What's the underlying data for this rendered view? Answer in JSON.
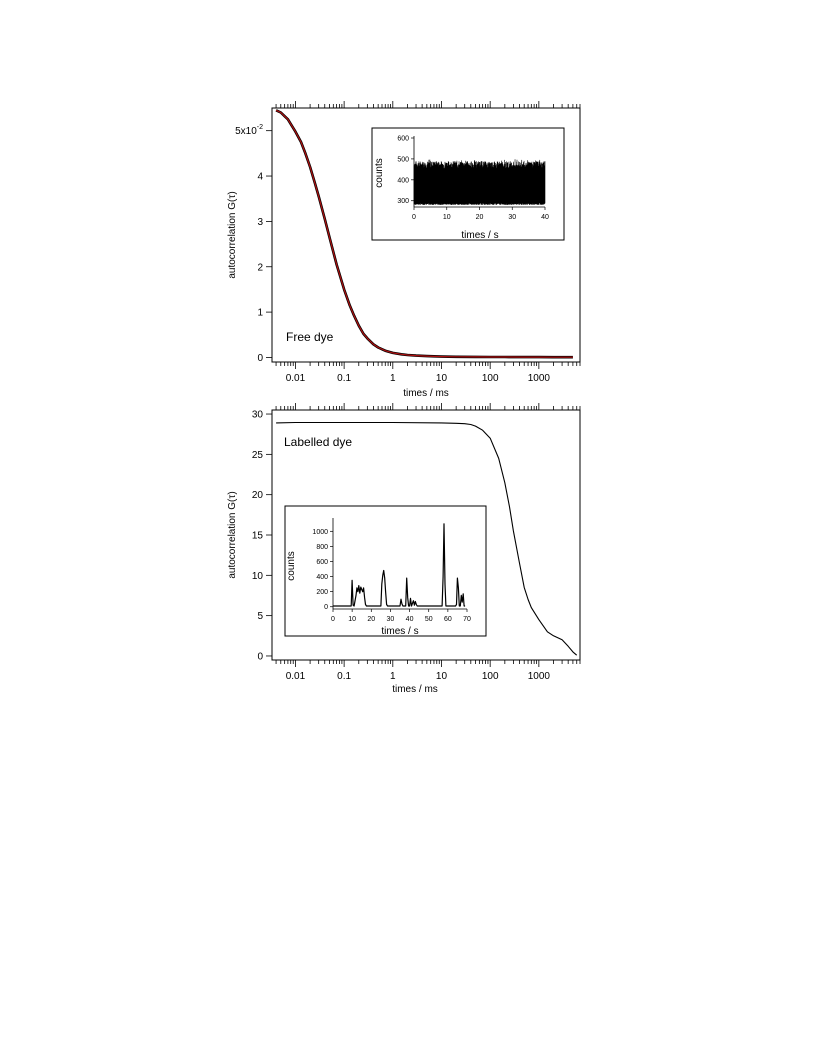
{
  "chart_data": [
    {
      "type": "line",
      "annotation": "Free dye",
      "xlabel": "times / ms",
      "ylabel": "autocorrelation G(τ)",
      "x_scale": "log",
      "xlim": [
        0.0033,
        7000
      ],
      "ylim": [
        -0.1,
        5.5
      ],
      "x_ticks": [
        {
          "value": 0.01,
          "label": "0.01"
        },
        {
          "value": 0.1,
          "label": "0.1"
        },
        {
          "value": 1,
          "label": "1"
        },
        {
          "value": 10,
          "label": "10"
        },
        {
          "value": 100,
          "label": "100"
        },
        {
          "value": 1000,
          "label": "1000"
        }
      ],
      "y_ticks": [
        {
          "value": 0,
          "label": "0"
        },
        {
          "value": 1,
          "label": "1"
        },
        {
          "value": 2,
          "label": "2"
        },
        {
          "value": 3,
          "label": "3"
        },
        {
          "value": 4,
          "label": "4"
        },
        {
          "value": 5,
          "label": "5x10",
          "sup": "-2"
        }
      ],
      "series": [
        {
          "style": "data",
          "color": "#000000",
          "x": [
            0.004,
            0.005,
            0.006,
            0.007,
            0.008,
            0.01,
            0.013,
            0.016,
            0.02,
            0.025,
            0.03,
            0.04,
            0.05,
            0.07,
            0.1,
            0.13,
            0.16,
            0.2,
            0.25,
            0.3,
            0.4,
            0.5,
            0.7,
            1,
            1.5,
            2,
            3,
            5,
            10,
            20,
            50,
            100,
            200,
            500,
            1000,
            2000,
            5000
          ],
          "y": [
            5.45,
            5.4,
            5.32,
            5.25,
            5.15,
            4.98,
            4.75,
            4.5,
            4.2,
            3.85,
            3.55,
            3.05,
            2.65,
            2.05,
            1.5,
            1.15,
            0.92,
            0.7,
            0.52,
            0.42,
            0.29,
            0.22,
            0.15,
            0.1,
            0.07,
            0.055,
            0.04,
            0.03,
            0.02,
            0.015,
            0.012,
            0.01,
            0.01,
            0.008,
            0.008,
            0.006,
            0.006
          ]
        },
        {
          "style": "fit",
          "color": "#b01010",
          "x": [
            0.004,
            0.005,
            0.006,
            0.007,
            0.008,
            0.01,
            0.013,
            0.016,
            0.02,
            0.025,
            0.03,
            0.04,
            0.05,
            0.07,
            0.1,
            0.13,
            0.16,
            0.2,
            0.25,
            0.3,
            0.4,
            0.5,
            0.7,
            1,
            1.5,
            2,
            3,
            5,
            10,
            20,
            50,
            100,
            200,
            500,
            1000,
            2000,
            5000
          ],
          "y": [
            5.45,
            5.4,
            5.32,
            5.25,
            5.15,
            4.98,
            4.75,
            4.5,
            4.2,
            3.85,
            3.55,
            3.05,
            2.65,
            2.05,
            1.5,
            1.15,
            0.92,
            0.7,
            0.52,
            0.42,
            0.29,
            0.22,
            0.15,
            0.1,
            0.07,
            0.055,
            0.04,
            0.03,
            0.02,
            0.015,
            0.012,
            0.01,
            0.01,
            0.008,
            0.008,
            0.006,
            0.006
          ]
        }
      ],
      "inset": {
        "type": "line",
        "xlabel": "times / s",
        "ylabel": "counts",
        "xlim": [
          0,
          40
        ],
        "ylim": [
          270,
          600
        ],
        "x_ticks": [
          {
            "value": 0,
            "label": "0"
          },
          {
            "value": 10,
            "label": "10"
          },
          {
            "value": 20,
            "label": "20"
          },
          {
            "value": 30,
            "label": "30"
          },
          {
            "value": 40,
            "label": "40"
          }
        ],
        "y_ticks": [
          {
            "value": 300,
            "label": "300"
          },
          {
            "value": 400,
            "label": "400"
          },
          {
            "value": 500,
            "label": "500"
          },
          {
            "value": 600,
            "label": "600"
          }
        ],
        "band": {
          "min": 280,
          "max": 500,
          "typical_low": 300,
          "typical_high": 470
        }
      }
    },
    {
      "type": "line",
      "annotation": "Labelled dye",
      "xlabel": "times / ms",
      "ylabel": "autocorrelation G(τ)",
      "x_scale": "log",
      "xlim": [
        0.0033,
        7000
      ],
      "ylim": [
        -0.5,
        30.5
      ],
      "x_ticks": [
        {
          "value": 0.01,
          "label": "0.01"
        },
        {
          "value": 0.1,
          "label": "0.1"
        },
        {
          "value": 1,
          "label": "1"
        },
        {
          "value": 10,
          "label": "10"
        },
        {
          "value": 100,
          "label": "100"
        },
        {
          "value": 1000,
          "label": "1000"
        }
      ],
      "y_ticks": [
        {
          "value": 0,
          "label": "0"
        },
        {
          "value": 5,
          "label": "5"
        },
        {
          "value": 10,
          "label": "10"
        },
        {
          "value": 15,
          "label": "15"
        },
        {
          "value": 20,
          "label": "20"
        },
        {
          "value": 25,
          "label": "25"
        },
        {
          "value": 30,
          "label": "30"
        }
      ],
      "series": [
        {
          "style": "data",
          "color": "#000000",
          "x": [
            0.004,
            0.01,
            0.1,
            1,
            10,
            20,
            30,
            40,
            50,
            70,
            100,
            150,
            200,
            250,
            300,
            400,
            500,
            600,
            700,
            1000,
            1500,
            2000,
            3000,
            4000,
            5000,
            6000
          ],
          "y": [
            28.9,
            28.95,
            28.95,
            28.95,
            28.9,
            28.85,
            28.8,
            28.7,
            28.5,
            28.0,
            27.0,
            24.5,
            21.5,
            18.5,
            15.5,
            11.5,
            8.5,
            7.0,
            6.0,
            4.5,
            3.0,
            2.5,
            2.0,
            1.2,
            0.5,
            0.1
          ]
        }
      ],
      "inset": {
        "type": "line",
        "xlabel": "times / s",
        "ylabel": "counts",
        "xlim": [
          0,
          70
        ],
        "ylim": [
          -30,
          1150
        ],
        "x_ticks": [
          {
            "value": 0,
            "label": "0"
          },
          {
            "value": 10,
            "label": "10"
          },
          {
            "value": 20,
            "label": "20"
          },
          {
            "value": 30,
            "label": "30"
          },
          {
            "value": 40,
            "label": "40"
          },
          {
            "value": 50,
            "label": "50"
          },
          {
            "value": 60,
            "label": "60"
          },
          {
            "value": 70,
            "label": "70"
          }
        ],
        "y_ticks": [
          {
            "value": 0,
            "label": "0"
          },
          {
            "value": 200,
            "label": "200"
          },
          {
            "value": 400,
            "label": "400"
          },
          {
            "value": 600,
            "label": "600"
          },
          {
            "value": 800,
            "label": "800"
          },
          {
            "value": 1000,
            "label": "1000"
          }
        ],
        "x": [
          0,
          9.5,
          10,
          10.5,
          11,
          12,
          12.5,
          13,
          13.5,
          14,
          14.5,
          15,
          15.5,
          16,
          16.5,
          17,
          17.5,
          18,
          18.5,
          19,
          25,
          25.5,
          26,
          26.5,
          27,
          27.5,
          28,
          28.5,
          35,
          35.5,
          36,
          36.5,
          37,
          38,
          38.5,
          39,
          39.5,
          40,
          40.5,
          41,
          42,
          42.5,
          43,
          43.5,
          44,
          45,
          46,
          57,
          57.5,
          58,
          58.5,
          59,
          59.5,
          63,
          64,
          64.5,
          65,
          65.5,
          66,
          66.5,
          67,
          67.5,
          68,
          68.5,
          69
        ],
        "y": [
          10,
          10,
          350,
          20,
          10,
          150,
          250,
          200,
          280,
          180,
          260,
          230,
          200,
          250,
          120,
          30,
          10,
          10,
          10,
          10,
          10,
          300,
          420,
          480,
          380,
          200,
          30,
          10,
          10,
          100,
          40,
          10,
          10,
          10,
          380,
          120,
          10,
          10,
          110,
          10,
          80,
          20,
          70,
          30,
          10,
          10,
          10,
          10,
          400,
          1100,
          300,
          10,
          10,
          10,
          10,
          30,
          380,
          250,
          10,
          10,
          150,
          60,
          170,
          10,
          10
        ]
      }
    }
  ]
}
